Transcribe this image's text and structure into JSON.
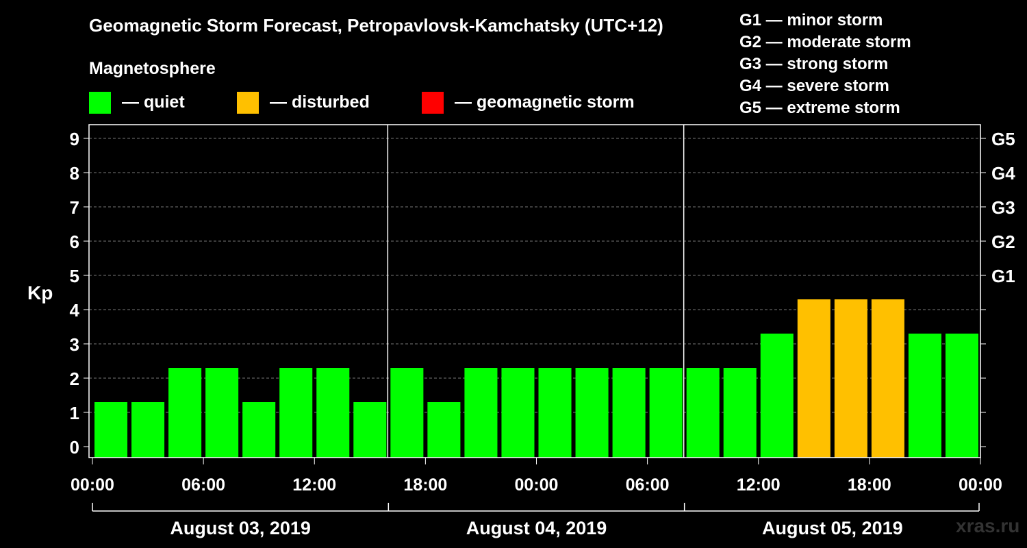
{
  "title": "Geomagnetic Storm Forecast, Petropavlovsk-Kamchatsky (UTC+12)",
  "magnetosphere": {
    "heading": "Magnetosphere",
    "items": [
      {
        "color": "#00ff00",
        "label": "— quiet"
      },
      {
        "color": "#ffc000",
        "label": "— disturbed"
      },
      {
        "color": "#ff0000",
        "label": "— geomagnetic storm"
      }
    ]
  },
  "storm_scale": [
    {
      "label": "G1 — minor storm"
    },
    {
      "label": "G2 — moderate storm"
    },
    {
      "label": "G3 — strong storm"
    },
    {
      "label": "G4 — severe storm"
    },
    {
      "label": "G5 — extreme storm"
    }
  ],
  "watermark": "xras.ru",
  "chart_data": {
    "type": "bar",
    "ylabel": "Kp",
    "ylim": [
      0,
      9
    ],
    "yticks": [
      "0",
      "1",
      "2",
      "3",
      "4",
      "5",
      "6",
      "7",
      "8",
      "9"
    ],
    "right_ticks": [
      {
        "kp": 5,
        "label": "G1"
      },
      {
        "kp": 6,
        "label": "G2"
      },
      {
        "kp": 7,
        "label": "G3"
      },
      {
        "kp": 8,
        "label": "G4"
      },
      {
        "kp": 9,
        "label": "G5"
      }
    ],
    "x_tick_labels": [
      "00:00",
      "06:00",
      "12:00",
      "18:00",
      "00:00",
      "06:00",
      "12:00",
      "18:00",
      "00:00",
      "06:00",
      "12:00",
      "18:00",
      "00:00"
    ],
    "days": [
      "August 03, 2019",
      "August 04, 2019",
      "August 05, 2019"
    ],
    "grid": true,
    "values": [
      1,
      1,
      2,
      2,
      1,
      2,
      2,
      1,
      2,
      1,
      2,
      2,
      2,
      2,
      2,
      2,
      2,
      2,
      3,
      4,
      4,
      4,
      3,
      3
    ],
    "colors": [
      "#00ff00",
      "#00ff00",
      "#00ff00",
      "#00ff00",
      "#00ff00",
      "#00ff00",
      "#00ff00",
      "#00ff00",
      "#00ff00",
      "#00ff00",
      "#00ff00",
      "#00ff00",
      "#00ff00",
      "#00ff00",
      "#00ff00",
      "#00ff00",
      "#00ff00",
      "#00ff00",
      "#00ff00",
      "#ffc000",
      "#ffc000",
      "#ffc000",
      "#00ff00",
      "#00ff00"
    ]
  }
}
